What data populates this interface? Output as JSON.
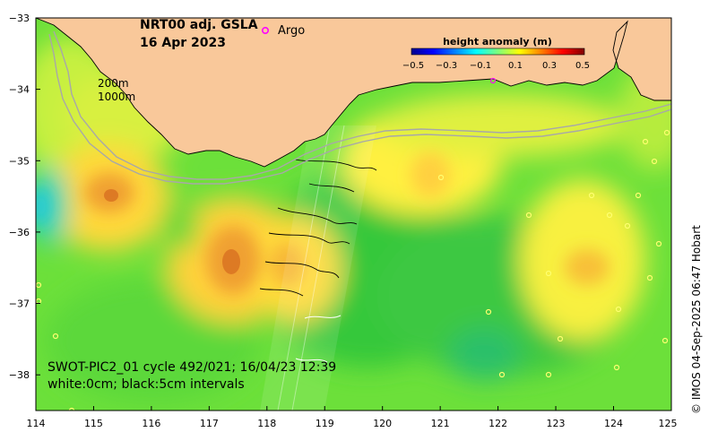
{
  "title": {
    "line1": "NRT00 adj. GSLA",
    "line2": "16 Apr 2023"
  },
  "legend": {
    "marker": "o",
    "label": "Argo",
    "marker_color": "#ff00ff"
  },
  "colorbar": {
    "title": "height anomaly (m)",
    "ticks": [
      "−0.5",
      "−0.3",
      "−0.1",
      "0.1",
      "0.3",
      "0.5"
    ],
    "range": [
      -0.5,
      0.5
    ],
    "colormap": "jet"
  },
  "isobaths": {
    "label_200": "200m",
    "label_1000": "1000m"
  },
  "swath_info": {
    "line1": "SWOT-PIC2_01 cycle 492/021; 16/04/23 12:39",
    "line2": "white:0cm; black:5cm intervals"
  },
  "credit": "© IMOS 04-Sep-2025 06:47 Hobart",
  "axes": {
    "x_ticks": [
      "114",
      "115",
      "116",
      "117",
      "118",
      "119",
      "120",
      "121",
      "122",
      "123",
      "124",
      "125"
    ],
    "y_ticks": [
      "−33",
      "−34",
      "−35",
      "−36",
      "−37",
      "−38"
    ],
    "x_range": [
      114,
      125
    ],
    "y_range": [
      -38.5,
      -33
    ]
  },
  "colors": {
    "land": "#f9c89a",
    "isobath": "#a8a8a8",
    "coast": "#000000"
  }
}
